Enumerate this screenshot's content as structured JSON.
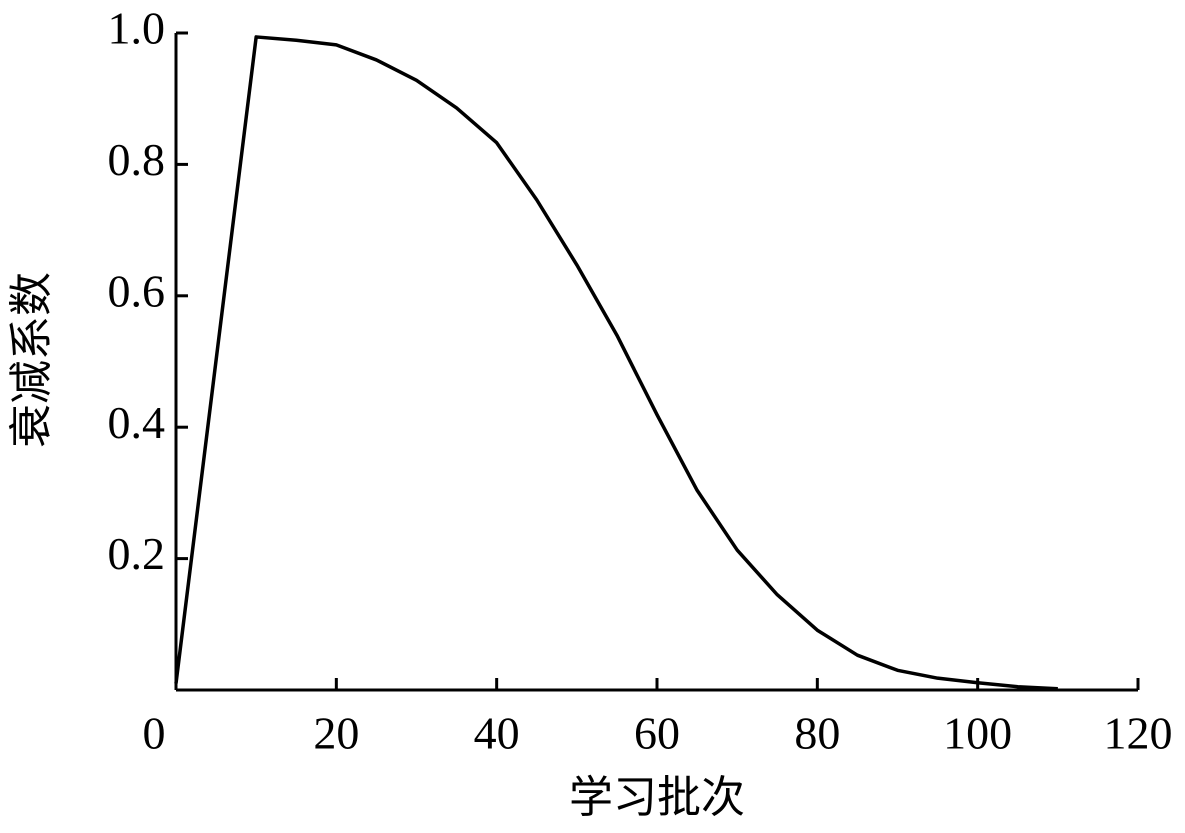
{
  "chart_data": {
    "type": "line",
    "x_label": "学习批次",
    "y_label": "衰减系数",
    "x": [
      0,
      10,
      15,
      20,
      25,
      30,
      35,
      40,
      45,
      50,
      55,
      60,
      65,
      70,
      75,
      80,
      85,
      90,
      95,
      100,
      105,
      110
    ],
    "series": [
      {
        "color": "#000000",
        "values": [
          0.01,
          0.994,
          0.989,
          0.982,
          0.959,
          0.928,
          0.886,
          0.833,
          0.746,
          0.647,
          0.54,
          0.419,
          0.304,
          0.213,
          0.145,
          0.091,
          0.053,
          0.03,
          0.018,
          0.011,
          0.005,
          0.002
        ]
      }
    ],
    "xlim": [
      0,
      120
    ],
    "ylim": [
      0,
      1
    ],
    "xticks": [
      0,
      20,
      40,
      60,
      80,
      100,
      120
    ],
    "yticks": [
      0.2,
      0.4,
      0.6,
      0.8,
      {
        "value": 1,
        "label": "1.0"
      }
    ],
    "grid": false
  }
}
